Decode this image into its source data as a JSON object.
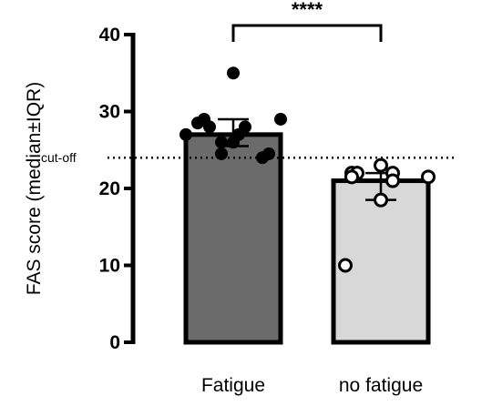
{
  "chart_data": {
    "type": "bar",
    "ylabel": "FAS score (median±IQR)",
    "ylim": [
      0,
      40
    ],
    "yticks": [
      0,
      10,
      20,
      30,
      40
    ],
    "categories": [
      "Fatigue",
      "no fatigue"
    ],
    "values": [
      27,
      21
    ],
    "iqr": [
      [
        25.5,
        29
      ],
      [
        18.5,
        22
      ]
    ],
    "bar_colors": [
      "#6b6b6b",
      "#d8d8d8"
    ],
    "points": [
      {
        "category": "Fatigue",
        "marker": "filled",
        "y": [
          35,
          29,
          29,
          28.5,
          28,
          28,
          27,
          27,
          26,
          26,
          24.5,
          24.5,
          24
        ]
      },
      {
        "category": "no fatigue",
        "marker": "open",
        "y": [
          23,
          22,
          22,
          22,
          21.5,
          21.5,
          21,
          18.5,
          10
        ]
      }
    ],
    "reference_line": {
      "y": 24,
      "label": "cut-off",
      "style": "dotted"
    },
    "significance": {
      "between": [
        "Fatigue",
        "no fatigue"
      ],
      "label": "****"
    }
  }
}
